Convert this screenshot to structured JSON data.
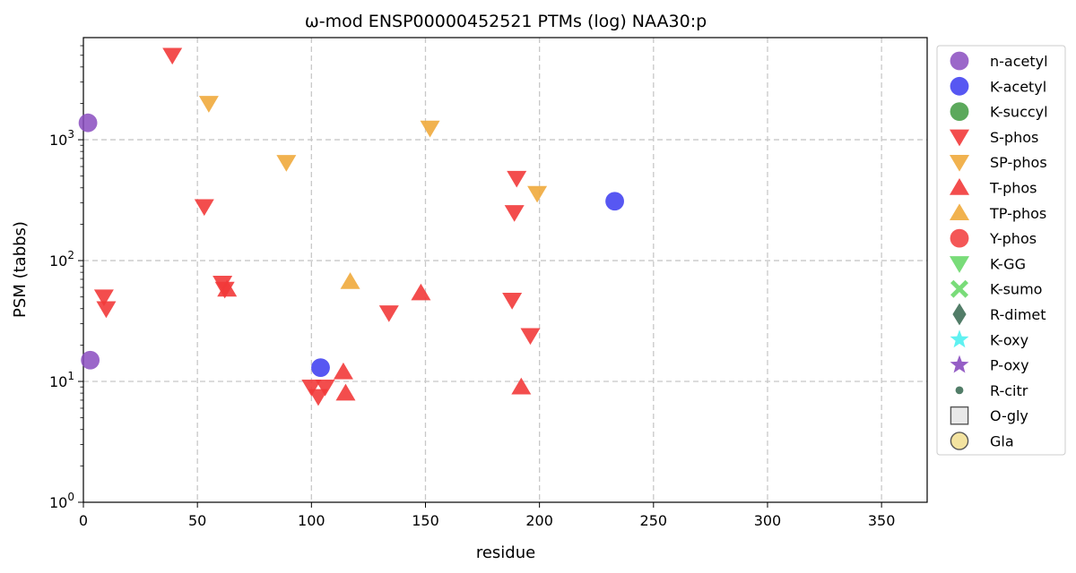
{
  "chart_data": {
    "type": "scatter",
    "title": "ω-mod ENSP00000452521 PTMs (log) NAA30:p",
    "xlabel": "residue",
    "ylabel": "PSM (tabbs)",
    "xlim": [
      0,
      370
    ],
    "ylim": [
      1,
      7000
    ],
    "yscale": "log",
    "grid": true,
    "legend_position": "outside-right",
    "x_ticks": [
      0,
      50,
      100,
      150,
      200,
      250,
      300,
      350
    ],
    "x_tick_labels": [
      "0",
      "50",
      "100",
      "150",
      "200",
      "250",
      "300",
      "350"
    ],
    "y_ticks": [
      1,
      10,
      100,
      1000
    ],
    "y_tick_labels": [
      {
        "base": "10",
        "exp": "0"
      },
      {
        "base": "10",
        "exp": "1"
      },
      {
        "base": "10",
        "exp": "2"
      },
      {
        "base": "10",
        "exp": "3"
      }
    ],
    "series": [
      {
        "name": "n-acetyl",
        "marker": "circle",
        "color": "#8a4cc0",
        "points": [
          [
            2,
            1380
          ],
          [
            3,
            15
          ]
        ]
      },
      {
        "name": "K-acetyl",
        "marker": "circle",
        "color": "#3a3af0",
        "points": [
          [
            104,
            13
          ],
          [
            233,
            310
          ]
        ]
      },
      {
        "name": "K-succyl",
        "marker": "circle",
        "color": "#3f9a3f",
        "points": []
      },
      {
        "name": "S-phos",
        "marker": "triangle-down",
        "color": "#f23a3a",
        "points": [
          [
            39,
            5000
          ],
          [
            53,
            280
          ],
          [
            9,
            50
          ],
          [
            10,
            40
          ],
          [
            61,
            65
          ],
          [
            62,
            58
          ],
          [
            134,
            37
          ],
          [
            188,
            47
          ],
          [
            190,
            480
          ],
          [
            189,
            250
          ],
          [
            196,
            24
          ],
          [
            100,
            9
          ],
          [
            103,
            7.5
          ],
          [
            106,
            9
          ]
        ]
      },
      {
        "name": "SP-phos",
        "marker": "triangle-down",
        "color": "#f0aa3c",
        "points": [
          [
            55,
            2000
          ],
          [
            89,
            650
          ],
          [
            152,
            1250
          ],
          [
            199,
            360
          ]
        ]
      },
      {
        "name": "T-phos",
        "marker": "triangle-up",
        "color": "#f23a3a",
        "points": [
          [
            63,
            58
          ],
          [
            148,
            54
          ],
          [
            114,
            12
          ],
          [
            115,
            8
          ],
          [
            192,
            9
          ]
        ]
      },
      {
        "name": "TP-phos",
        "marker": "triangle-up",
        "color": "#f0aa3c",
        "points": [
          [
            117,
            67
          ]
        ]
      },
      {
        "name": "Y-phos",
        "marker": "circle",
        "color": "#f23a3a",
        "points": []
      },
      {
        "name": "K-GG",
        "marker": "triangle-down",
        "color": "#6ad86a",
        "points": []
      },
      {
        "name": "K-sumo",
        "marker": "x",
        "color": "#6ad86a",
        "points": []
      },
      {
        "name": "R-dimet",
        "marker": "diamond",
        "color": "#3f6f58",
        "points": []
      },
      {
        "name": "K-oxy",
        "marker": "star",
        "color": "#4ef0f0",
        "points": []
      },
      {
        "name": "P-oxy",
        "marker": "star",
        "color": "#8a4cc0",
        "points": []
      },
      {
        "name": "R-citr",
        "marker": "small-circle",
        "color": "#3f6f58",
        "points": []
      },
      {
        "name": "O-gly",
        "marker": "square",
        "color": "#e8e8e8",
        "points": []
      },
      {
        "name": "Gla",
        "marker": "circle-outline",
        "color": "#f3e3a0",
        "points": []
      }
    ]
  }
}
